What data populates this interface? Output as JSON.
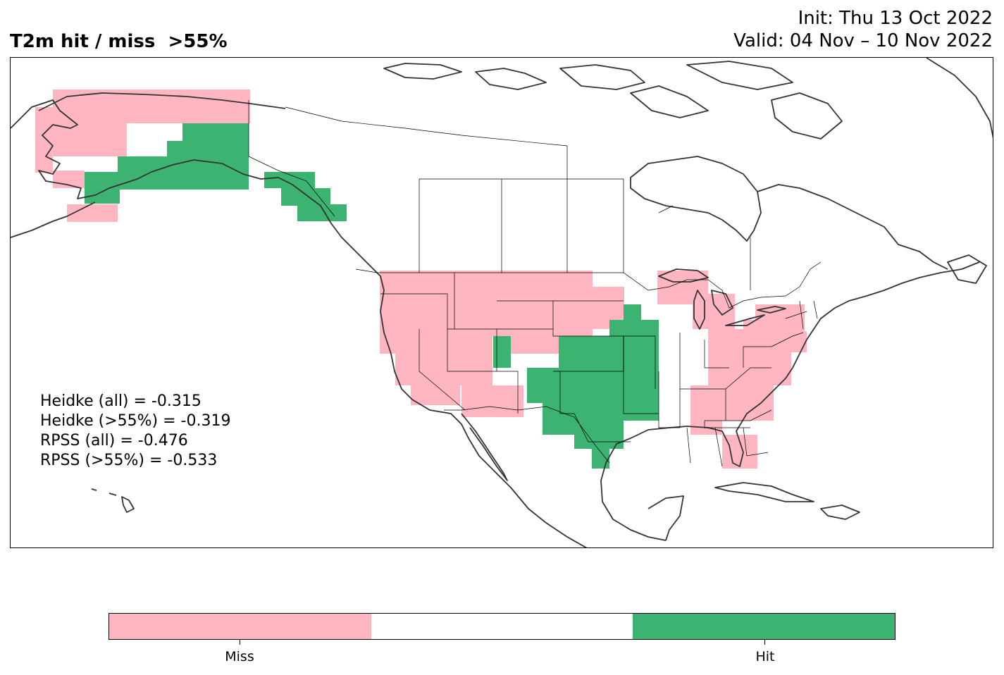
{
  "title": {
    "left": "T2m hit / miss  >55%",
    "init": "Init: Thu 13 Oct 2022",
    "valid": "Valid: 04 Nov – 10 Nov 2022"
  },
  "scores": [
    {
      "label": "Heidke (all) = -0.315"
    },
    {
      "label": "Heidke (>55%) = -0.319"
    },
    {
      "label": "RPSS (all) = -0.476"
    },
    {
      "label": "RPSS (>55%) = -0.533"
    }
  ],
  "legend": {
    "categories": [
      {
        "label": "Miss",
        "color": "#ffb6c1"
      },
      {
        "label": "",
        "color": "#ffffff"
      },
      {
        "label": "Hit",
        "color": "#3cb371"
      }
    ]
  },
  "colors": {
    "miss": "#ffb6c1",
    "hit": "#3cb371",
    "coast": "#333333",
    "border": "#000000"
  },
  "regions": [
    {
      "name": "Alaska north & west",
      "result": "miss"
    },
    {
      "name": "Alaska south-central",
      "result": "hit"
    },
    {
      "name": "Alaska panhandle",
      "result": "hit"
    },
    {
      "name": "US West & Northern Plains",
      "result": "miss"
    },
    {
      "name": "Central Plains, Texas & lower Mississippi",
      "result": "hit"
    },
    {
      "name": "Upper Midwest",
      "result": "miss"
    },
    {
      "name": "Ohio Valley, Mid-Atlantic & Northeast",
      "result": "miss"
    },
    {
      "name": "Southeast & Florida",
      "result": "miss"
    }
  ]
}
